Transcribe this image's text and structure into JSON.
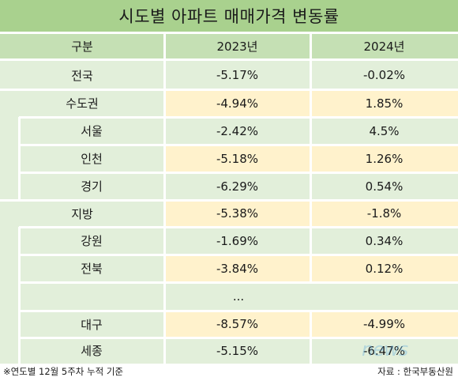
{
  "title": "시도별 아파트 매매가격 변동률",
  "header": {
    "region": "구분",
    "y2023": "2023년",
    "y2024": "2024년"
  },
  "rows": [
    {
      "name": "전국",
      "y2023": "-5.17%",
      "y2024": "-0.02%"
    },
    {
      "name": "수도권",
      "y2023": "-4.94%",
      "y2024": "1.85%"
    },
    {
      "name": "서울",
      "y2023": "-2.42%",
      "y2024": "4.5%"
    },
    {
      "name": "인천",
      "y2023": "-5.18%",
      "y2024": "1.26%"
    },
    {
      "name": "경기",
      "y2023": "-6.29%",
      "y2024": "0.54%"
    },
    {
      "name": "지방",
      "y2023": "-5.38%",
      "y2024": "-1.8%"
    },
    {
      "name": "강원",
      "y2023": "-1.69%",
      "y2024": "0.34%"
    },
    {
      "name": "전북",
      "y2023": "-3.84%",
      "y2024": "0.12%"
    },
    {
      "name": "...",
      "y2023": "",
      "y2024": ""
    },
    {
      "name": "대구",
      "y2023": "-8.57%",
      "y2024": "-4.99%"
    },
    {
      "name": "세종",
      "y2023": "-5.15%",
      "y2024": "-6.47%"
    }
  ],
  "footnote": "※연도별 12월 5주차 누적 기준",
  "source": "자료 : 한국부동산원",
  "watermark": "news",
  "colors": {
    "title": "#a9d18e",
    "header": "#c5e0b4",
    "name_cell": "#e2efda",
    "value_cell": "#fff2cc"
  }
}
